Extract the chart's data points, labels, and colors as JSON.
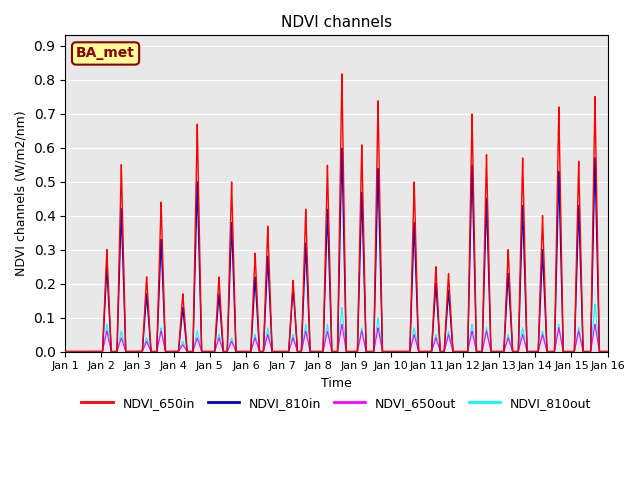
{
  "title": "NDVI channels",
  "xlabel": "Time",
  "ylabel": "NDVI channels (W/m2/nm)",
  "xlim": [
    0,
    15
  ],
  "ylim": [
    0,
    0.93
  ],
  "yticks": [
    0.0,
    0.1,
    0.2,
    0.3,
    0.4,
    0.5,
    0.6,
    0.7,
    0.8,
    0.9
  ],
  "xtick_labels": [
    "Jan 1",
    "Jan 2",
    "Jan 3",
    "Jan 4",
    "Jan 5",
    "Jan 6",
    "Jan 7",
    "Jan 8",
    "Jan 9",
    "Jan 10",
    "Jan 11",
    "Jan 12",
    "Jan 13",
    "Jan 14",
    "Jan 15",
    "Jan 16"
  ],
  "annotation_text": "BA_met",
  "annotation_color": "#8B0000",
  "annotation_bg": "#FFFF99",
  "colors": {
    "NDVI_650in": "#FF0000",
    "NDVI_810in": "#0000CC",
    "NDVI_650out": "#FF00FF",
    "NDVI_810out": "#00FFFF"
  },
  "background_color": "#E8E8E8",
  "legend_labels": [
    "NDVI_650in",
    "NDVI_810in",
    "NDVI_650out",
    "NDVI_810out"
  ],
  "spikes": [
    {
      "t": 1.15,
      "h650in": 0.3,
      "h810in": 0.25,
      "h650out": 0.06,
      "h810out": 0.08
    },
    {
      "t": 1.55,
      "h650in": 0.55,
      "h810in": 0.42,
      "h650out": 0.04,
      "h810out": 0.06
    },
    {
      "t": 2.25,
      "h650in": 0.22,
      "h810in": 0.17,
      "h650out": 0.03,
      "h810out": 0.04
    },
    {
      "t": 2.65,
      "h650in": 0.44,
      "h810in": 0.33,
      "h650out": 0.06,
      "h810out": 0.07
    },
    {
      "t": 3.25,
      "h650in": 0.17,
      "h810in": 0.13,
      "h650out": 0.02,
      "h810out": 0.03
    },
    {
      "t": 3.65,
      "h650in": 0.67,
      "h810in": 0.5,
      "h650out": 0.04,
      "h810out": 0.06
    },
    {
      "t": 4.25,
      "h650in": 0.22,
      "h810in": 0.17,
      "h650out": 0.04,
      "h810out": 0.05
    },
    {
      "t": 4.6,
      "h650in": 0.5,
      "h810in": 0.38,
      "h650out": 0.03,
      "h810out": 0.04
    },
    {
      "t": 5.25,
      "h650in": 0.29,
      "h810in": 0.22,
      "h650out": 0.04,
      "h810out": 0.05
    },
    {
      "t": 5.6,
      "h650in": 0.37,
      "h810in": 0.28,
      "h650out": 0.05,
      "h810out": 0.07
    },
    {
      "t": 6.3,
      "h650in": 0.21,
      "h810in": 0.19,
      "h650out": 0.04,
      "h810out": 0.05
    },
    {
      "t": 6.65,
      "h650in": 0.42,
      "h810in": 0.32,
      "h650out": 0.06,
      "h810out": 0.08
    },
    {
      "t": 7.25,
      "h650in": 0.55,
      "h810in": 0.42,
      "h650out": 0.06,
      "h810out": 0.08
    },
    {
      "t": 7.65,
      "h650in": 0.82,
      "h810in": 0.6,
      "h650out": 0.08,
      "h810out": 0.13
    },
    {
      "t": 8.2,
      "h650in": 0.61,
      "h810in": 0.47,
      "h650out": 0.06,
      "h810out": 0.07
    },
    {
      "t": 8.65,
      "h650in": 0.74,
      "h810in": 0.54,
      "h650out": 0.07,
      "h810out": 0.1
    },
    {
      "t": 9.65,
      "h650in": 0.5,
      "h810in": 0.38,
      "h650out": 0.05,
      "h810out": 0.07
    },
    {
      "t": 10.25,
      "h650in": 0.25,
      "h810in": 0.2,
      "h650out": 0.04,
      "h810out": 0.05
    },
    {
      "t": 10.6,
      "h650in": 0.23,
      "h810in": 0.18,
      "h650out": 0.05,
      "h810out": 0.06
    },
    {
      "t": 11.25,
      "h650in": 0.7,
      "h810in": 0.55,
      "h650out": 0.06,
      "h810out": 0.08
    },
    {
      "t": 11.65,
      "h650in": 0.58,
      "h810in": 0.45,
      "h650out": 0.06,
      "h810out": 0.07
    },
    {
      "t": 12.25,
      "h650in": 0.3,
      "h810in": 0.23,
      "h650out": 0.04,
      "h810out": 0.05
    },
    {
      "t": 12.65,
      "h650in": 0.57,
      "h810in": 0.43,
      "h650out": 0.05,
      "h810out": 0.07
    },
    {
      "t": 13.2,
      "h650in": 0.4,
      "h810in": 0.3,
      "h650out": 0.05,
      "h810out": 0.06
    },
    {
      "t": 13.65,
      "h650in": 0.72,
      "h810in": 0.53,
      "h650out": 0.07,
      "h810out": 0.08
    },
    {
      "t": 14.2,
      "h650in": 0.56,
      "h810in": 0.43,
      "h650out": 0.06,
      "h810out": 0.07
    },
    {
      "t": 14.65,
      "h650in": 0.75,
      "h810in": 0.57,
      "h650out": 0.08,
      "h810out": 0.14
    }
  ]
}
